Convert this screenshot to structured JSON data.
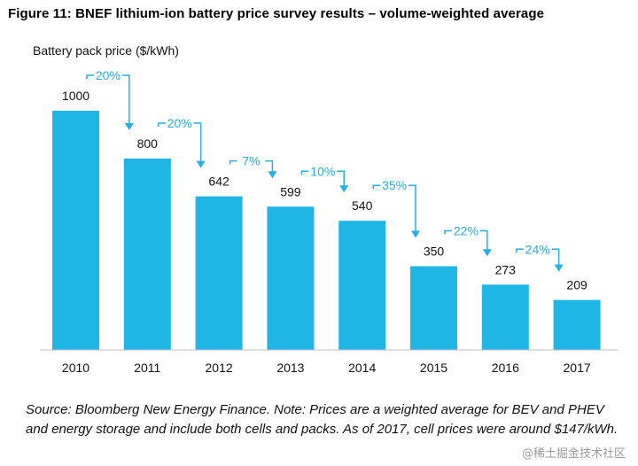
{
  "figure_title": "Figure 11: BNEF lithium-ion battery price survey results – volume-weighted average",
  "source_note": "Source: Bloomberg New Energy Finance. Note: Prices are a weighted average for BEV and PHEV and energy storage and include both cells and packs. As of 2017, cell prices were around $147/kWh.",
  "watermark": "@稀土掘金技术社区",
  "colors": {
    "bar": "#1fb5e5",
    "annotation": "#27aee3",
    "axis": "#bfbfbf"
  },
  "chart_data": {
    "type": "bar",
    "title": "",
    "ylabel": "Battery pack price ($/kWh)",
    "xlabel": "",
    "categories": [
      "2010",
      "2011",
      "2012",
      "2013",
      "2014",
      "2015",
      "2016",
      "2017"
    ],
    "values": [
      1000,
      800,
      642,
      599,
      540,
      350,
      273,
      209
    ],
    "ylim": [
      0,
      1000
    ],
    "grid": false,
    "data_labels": true,
    "annotations": [
      "20%",
      "20%",
      "7%",
      "10%",
      "35%",
      "22%",
      "24%"
    ]
  }
}
